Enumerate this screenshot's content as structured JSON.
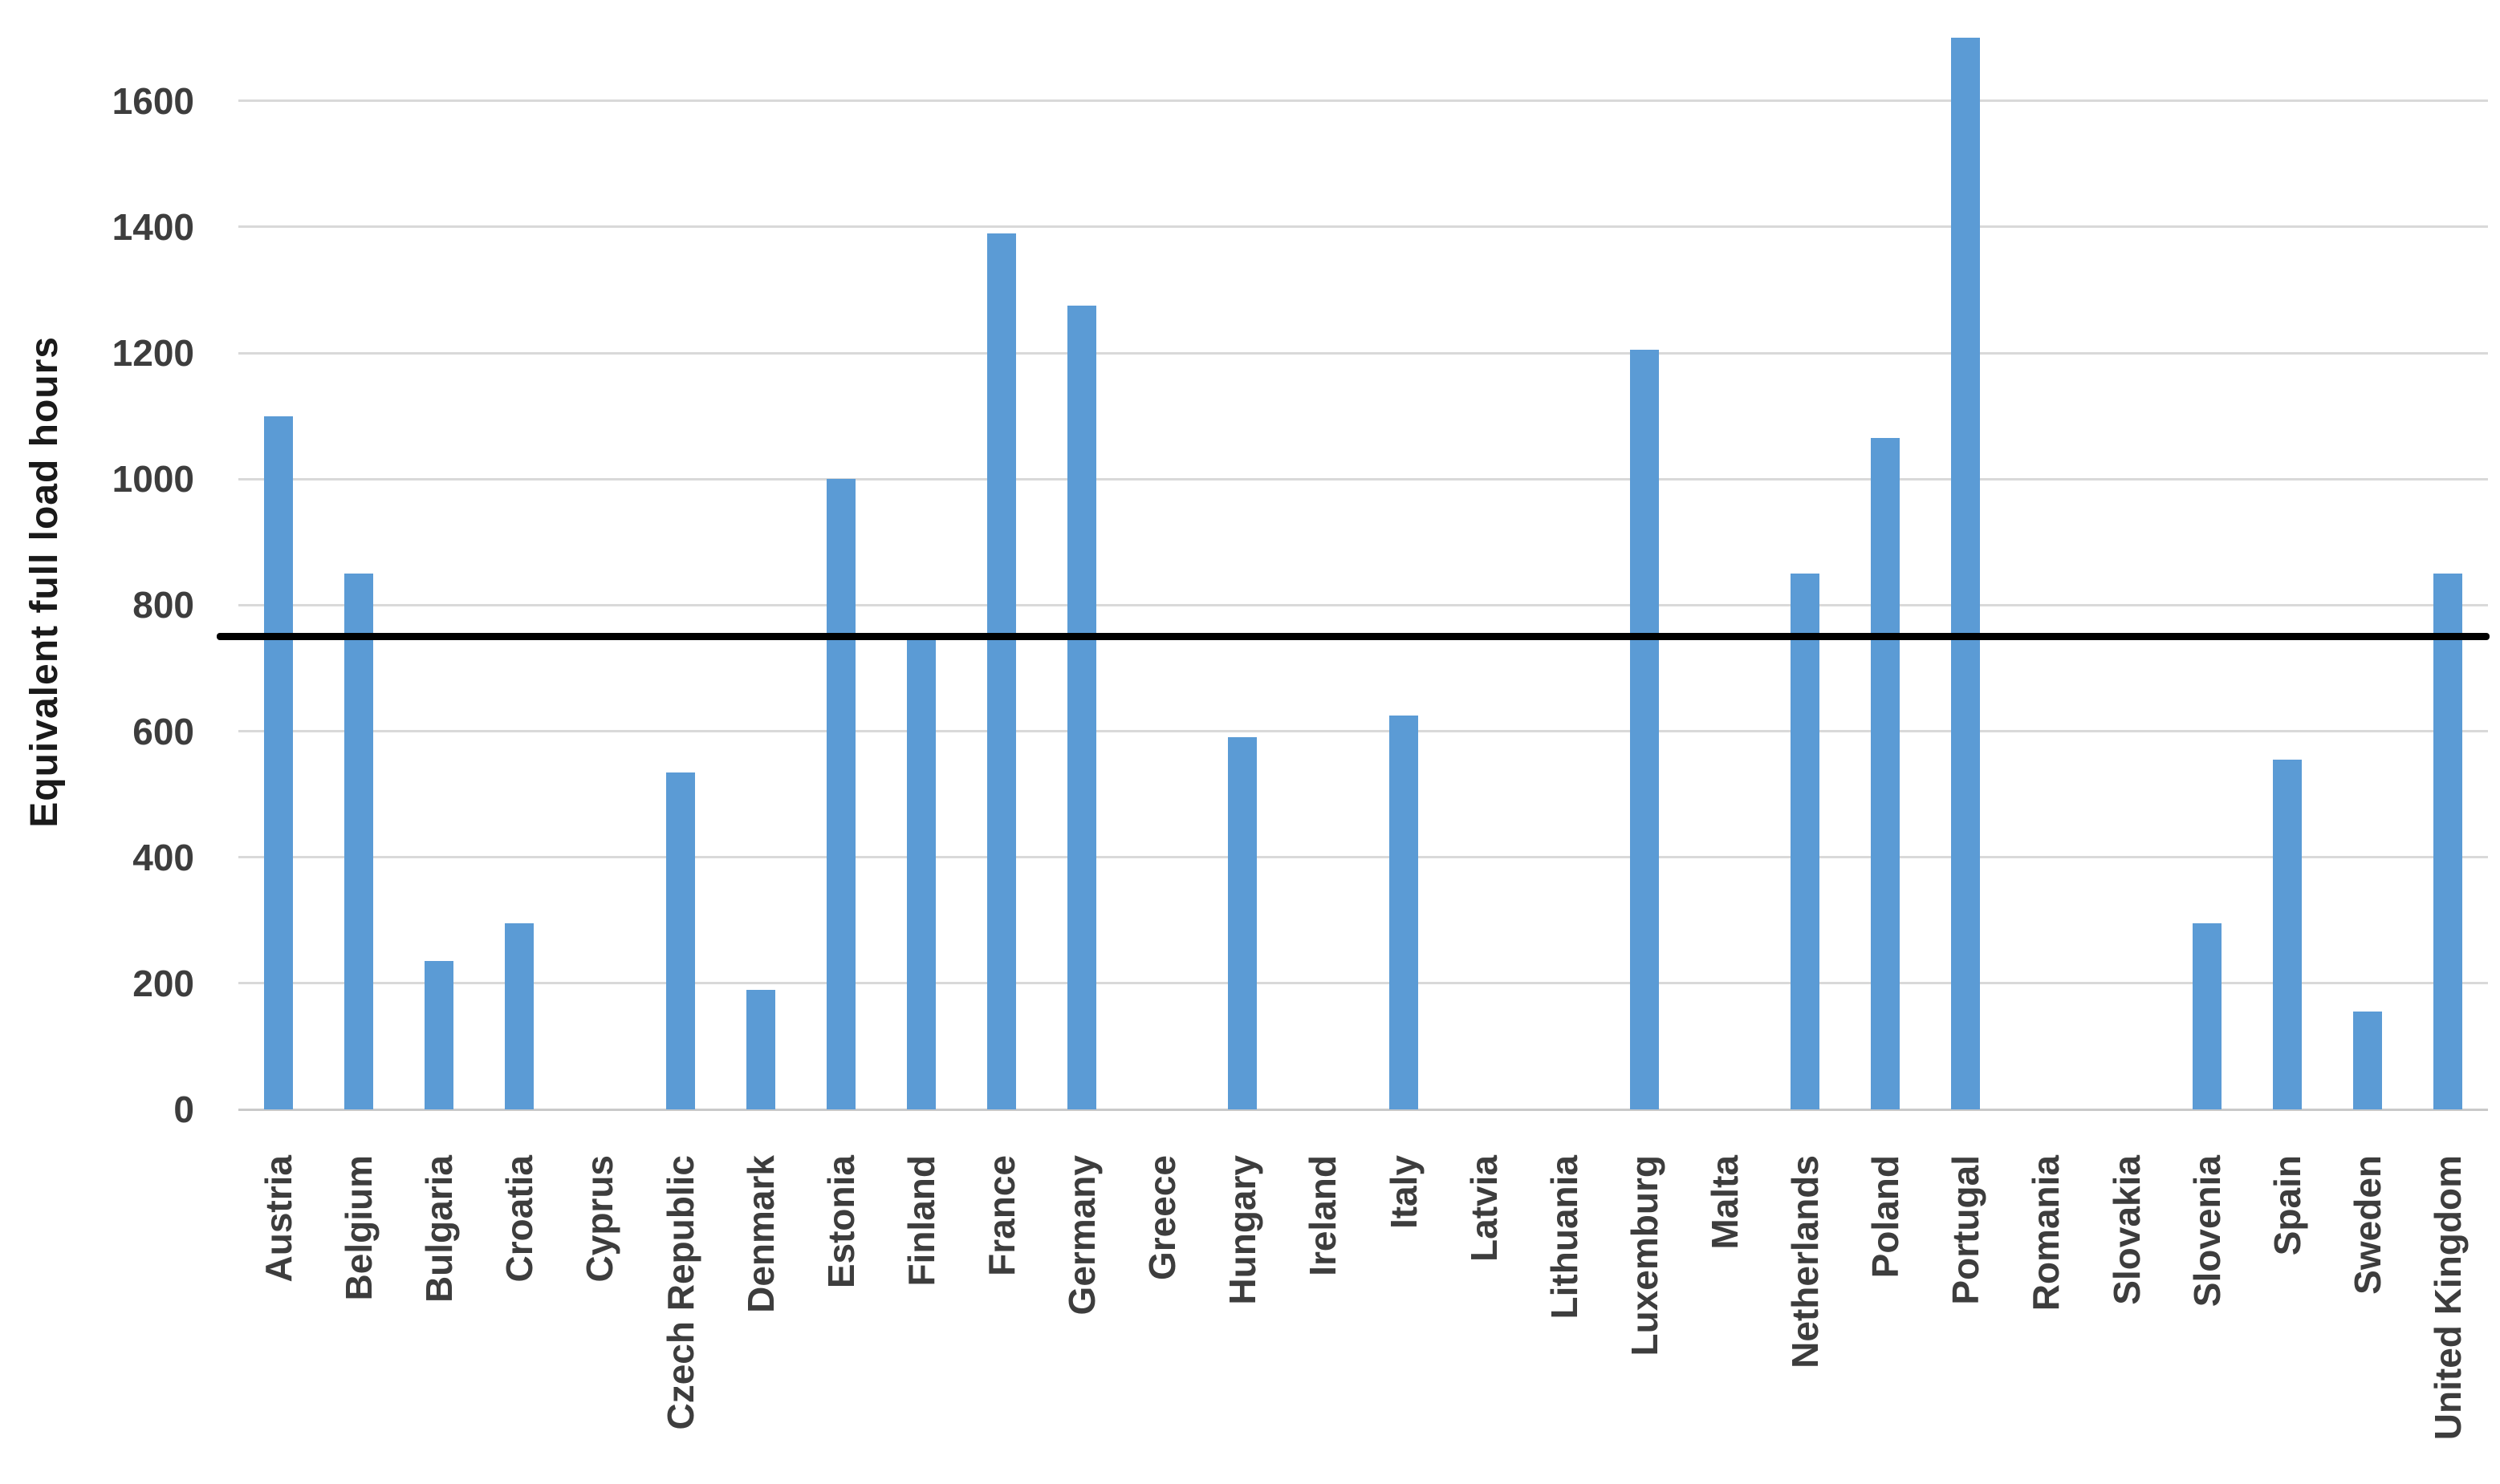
{
  "chart_data": {
    "type": "bar",
    "title": "",
    "xlabel": "",
    "ylabel": "Equivalent full load hours",
    "categories": [
      "Austria",
      "Belgium",
      "Bulgaria",
      "Croatia",
      "Cyprus",
      "Czech Republic",
      "Denmark",
      "Estonia",
      "Finland",
      "France",
      "Germany",
      "Greece",
      "Hungary",
      "Ireland",
      "Italy",
      "Latvia",
      "Lithuania",
      "Luxemburg",
      "Malta",
      "Netherlands",
      "Poland",
      "Portugal",
      "Romania",
      "Slovakia",
      "Slovenia",
      "Spain",
      "Sweden",
      "United Kingdom"
    ],
    "values": [
      1100,
      850,
      235,
      295,
      0,
      535,
      190,
      1000,
      745,
      1390,
      1275,
      0,
      590,
      0,
      625,
      0,
      0,
      1205,
      0,
      850,
      1065,
      1700,
      0,
      0,
      295,
      555,
      155,
      850
    ],
    "yticks": [
      0,
      200,
      400,
      600,
      800,
      1000,
      1200,
      1400,
      1600
    ],
    "ylim": [
      0,
      1760
    ],
    "grid": "horizontal",
    "legend": "none",
    "bar_color": "#5B9BD5",
    "grid_color": "#D9D9D9",
    "axis_text_color": "#3D3D3D",
    "reference_line": {
      "value": 750,
      "color": "#000000"
    }
  }
}
